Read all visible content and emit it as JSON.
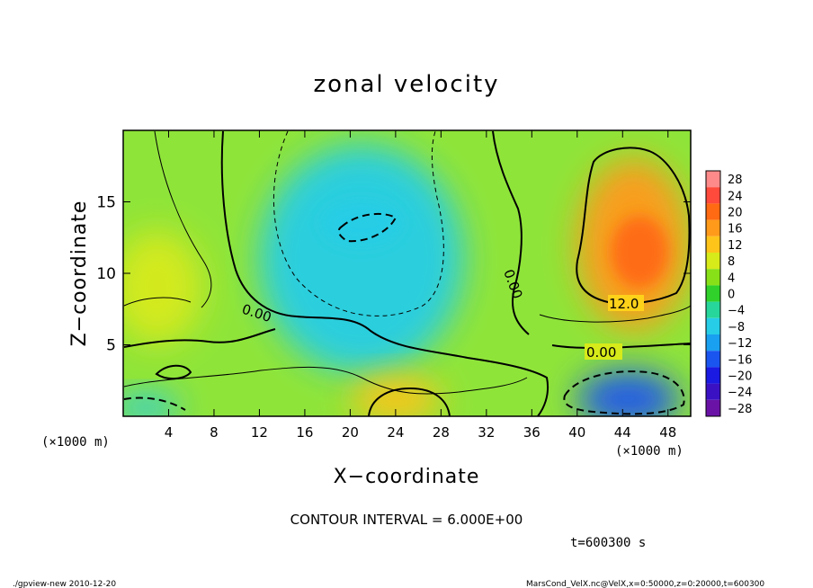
{
  "chart_data": {
    "type": "heatmap",
    "title": "zonal velocity",
    "xlabel": "X−coordinate",
    "ylabel": "Z−coordinate",
    "x_unit_left": "(×1000 m)",
    "x_unit_right": "(×1000 m)",
    "x_ticks": [
      4,
      8,
      12,
      16,
      20,
      24,
      28,
      32,
      36,
      40,
      44,
      48
    ],
    "y_ticks": [
      5,
      10,
      15
    ],
    "xlim": [
      0,
      50
    ],
    "ylim": [
      0,
      20
    ],
    "colorbar": {
      "levels": [
        28,
        24,
        20,
        16,
        12,
        8,
        4,
        0,
        -4,
        -8,
        -12,
        -16,
        -20,
        -24,
        -28
      ],
      "labels": [
        "28",
        "24",
        "20",
        "16",
        "12",
        "8",
        "4",
        "0",
        "−4",
        "−8",
        "−12",
        "−16",
        "−20",
        "−24",
        "−28"
      ],
      "colors": [
        "#ff8a8a",
        "#ff4a3c",
        "#ff6a12",
        "#ff9a1a",
        "#ffc41a",
        "#d7ea1a",
        "#88e018",
        "#2fd12a",
        "#27d69a",
        "#27cde6",
        "#1aa0f0",
        "#1a55ef",
        "#1a1ae2",
        "#3a12c4",
        "#6a12a6"
      ]
    },
    "contour_labels": [
      "0.00",
      "0.00",
      "12.0",
      "0.00"
    ],
    "contour_interval_text": "CONTOUR INTERVAL = 6.000E+00",
    "time_text": "t=600300 s",
    "regions": [
      {
        "kind": "cyan-band",
        "x": 21,
        "z": 11,
        "rx": 9,
        "rz": 8,
        "value": -8
      },
      {
        "kind": "cyan-core",
        "x": 21,
        "z": 13.5,
        "rx": 3.5,
        "rz": 1.6,
        "value": -10
      },
      {
        "kind": "warm-right",
        "x": 45,
        "z": 12,
        "rx": 5,
        "rz": 6,
        "value": 16
      },
      {
        "kind": "warm-right-core",
        "x": 45.5,
        "z": 11.5,
        "rx": 2.5,
        "rz": 2.5,
        "value": 18
      },
      {
        "kind": "yellow-left",
        "x": 3,
        "z": 9,
        "rx": 4,
        "rz": 4,
        "value": 6
      },
      {
        "kind": "warm-bottom",
        "x": 24,
        "z": 1.2,
        "rx": 4,
        "rz": 1.6,
        "value": 12
      },
      {
        "kind": "blue-bottom-right",
        "x": 44.5,
        "z": 1.2,
        "rx": 4.5,
        "rz": 2,
        "value": -16
      },
      {
        "kind": "cyan-bottom-left",
        "x": 2,
        "z": 0.6,
        "rx": 3,
        "rz": 1,
        "value": -10
      }
    ]
  },
  "footer": {
    "left": "./gpview-new  2010-12-20",
    "right": "MarsCond_VelX.nc@VelX,x=0:50000,z=0:20000,t=600300"
  }
}
